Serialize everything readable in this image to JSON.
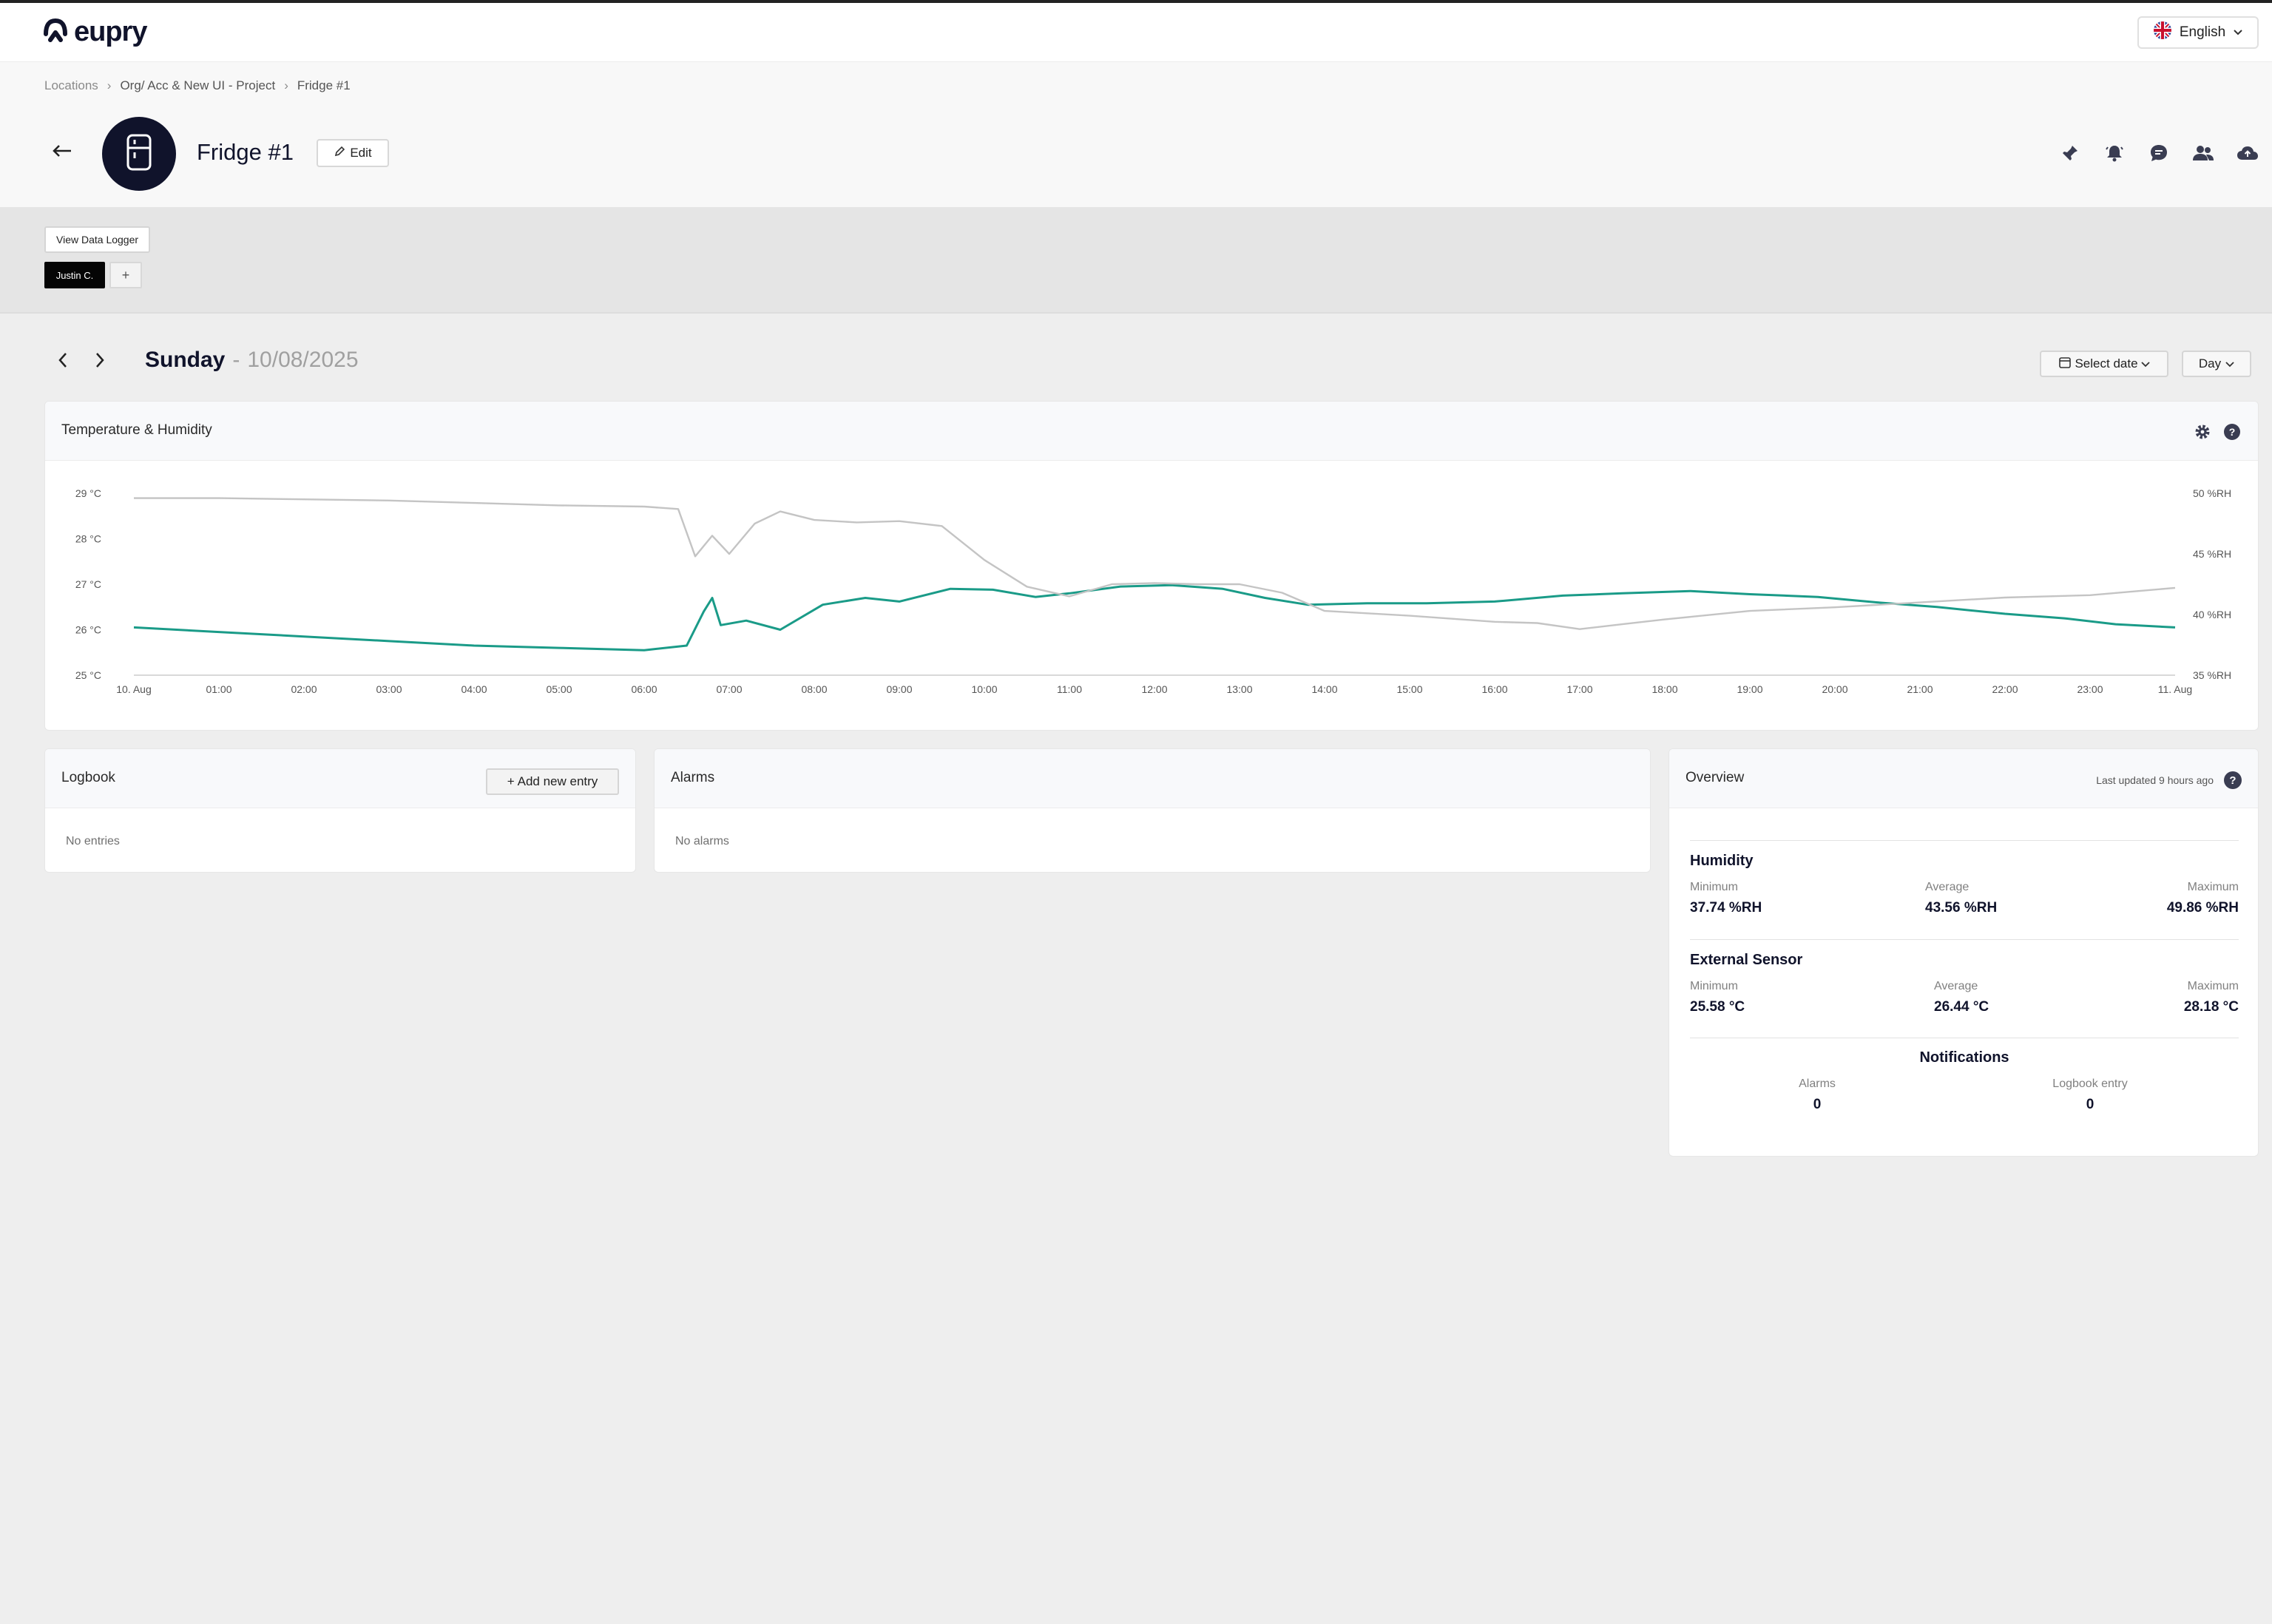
{
  "brand": {
    "name": "eupry"
  },
  "language": {
    "label": "English"
  },
  "breadcrumb": {
    "items": [
      "Locations",
      "Org/ Acc & New UI - Project",
      "Fridge #1"
    ]
  },
  "device": {
    "title": "Fridge #1",
    "edit_label": "Edit"
  },
  "header_actions": [
    "pin-icon",
    "bell-icon",
    "chat-icon",
    "users-icon",
    "cloud-upload-icon"
  ],
  "subbar": {
    "view_logger_label": "View Data Logger",
    "user_chip": "Justin C.",
    "add_chip": "+"
  },
  "date_nav": {
    "day": "Sunday",
    "separator": "-",
    "date": "10/08/2025",
    "select_date_label": "Select date",
    "range_label": "Day"
  },
  "chart_card": {
    "title": "Temperature & Humidity"
  },
  "chart_data": {
    "type": "line",
    "title": "",
    "x_ticks": [
      "10. Aug",
      "01:00",
      "02:00",
      "03:00",
      "04:00",
      "05:00",
      "06:00",
      "07:00",
      "08:00",
      "09:00",
      "10:00",
      "11:00",
      "12:00",
      "13:00",
      "14:00",
      "15:00",
      "16:00",
      "17:00",
      "18:00",
      "19:00",
      "20:00",
      "21:00",
      "22:00",
      "23:00",
      "11. Aug"
    ],
    "y_left": {
      "ticks": [
        "29 °C",
        "28 °C",
        "27 °C",
        "26 °C",
        "25 °C"
      ],
      "ylim": [
        25,
        29
      ]
    },
    "y_right": {
      "ticks": [
        "50 %RH",
        "45 %RH",
        "40 %RH",
        "35 %RH"
      ],
      "ylim": [
        35,
        50
      ]
    },
    "colors": {
      "temperature": "#1a9b88",
      "humidity": "#c4c4c4"
    },
    "series": [
      {
        "axis": "left",
        "x": [
          0,
          1,
          2,
          3,
          4,
          5,
          6,
          6.5,
          6.7,
          6.8,
          6.9,
          7.2,
          7.6,
          8.1,
          8.6,
          9.0,
          9.6,
          10.1,
          10.6,
          11.0,
          11.6,
          12.2,
          12.8,
          13.3,
          13.8,
          14.5,
          15.2,
          16.0,
          16.8,
          17.5,
          18.3,
          19.0,
          19.8,
          20.5,
          21.2,
          22.0,
          22.7,
          23.3,
          24
        ],
        "y": [
          26.05,
          25.95,
          25.85,
          25.75,
          25.65,
          25.6,
          25.55,
          25.65,
          26.4,
          26.7,
          26.1,
          26.2,
          26.0,
          26.55,
          26.7,
          26.62,
          26.9,
          26.88,
          26.72,
          26.8,
          26.95,
          26.98,
          26.9,
          26.7,
          26.55,
          26.58,
          26.58,
          26.62,
          26.75,
          26.8,
          26.85,
          26.78,
          26.72,
          26.6,
          26.5,
          26.35,
          26.25,
          26.12,
          26.05
        ]
      },
      {
        "axis": "right",
        "x": [
          0,
          1,
          2,
          3,
          4,
          5,
          6,
          6.4,
          6.6,
          6.8,
          7.0,
          7.3,
          7.6,
          8.0,
          8.5,
          9.0,
          9.5,
          10.0,
          10.5,
          11.0,
          11.5,
          12.0,
          12.5,
          13.0,
          13.5,
          14.0,
          15.0,
          16.0,
          16.5,
          17.0,
          17.5,
          18.0,
          19.0,
          20.0,
          21.0,
          22.0,
          23.0,
          24
        ],
        "y": [
          49.6,
          49.6,
          49.5,
          49.4,
          49.2,
          49.0,
          48.9,
          48.7,
          44.8,
          46.5,
          45.0,
          47.5,
          48.5,
          47.8,
          47.6,
          47.7,
          47.3,
          44.5,
          42.3,
          41.5,
          42.5,
          42.6,
          42.5,
          42.5,
          41.8,
          40.3,
          39.9,
          39.4,
          39.3,
          38.8,
          39.2,
          39.6,
          40.3,
          40.6,
          41.0,
          41.4,
          41.6,
          42.2
        ]
      }
    ]
  },
  "logbook": {
    "title": "Logbook",
    "add_label": "Add new entry",
    "empty": "No entries"
  },
  "alarms": {
    "title": "Alarms",
    "empty": "No alarms"
  },
  "overview": {
    "title": "Overview",
    "last_updated": "Last updated 9 hours ago",
    "help": "?",
    "humidity": {
      "title": "Humidity",
      "min_label": "Minimum",
      "min": "37.74 %RH",
      "avg_label": "Average",
      "avg": "43.56 %RH",
      "max_label": "Maximum",
      "max": "49.86 %RH"
    },
    "external": {
      "title": "External Sensor",
      "min_label": "Minimum",
      "min": "25.58 °C",
      "avg_label": "Average",
      "avg": "26.44 °C",
      "max_label": "Maximum",
      "max": "28.18 °C"
    },
    "notifications": {
      "title": "Notifications",
      "alarms_label": "Alarms",
      "alarms": "0",
      "logbook_label": "Logbook entry",
      "logbook": "0"
    }
  }
}
